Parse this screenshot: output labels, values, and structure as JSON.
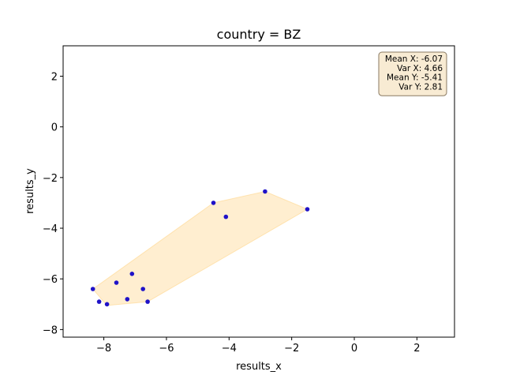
{
  "chart_data": {
    "type": "scatter",
    "title": "country = BZ",
    "xlabel": "results_x",
    "ylabel": "results_y",
    "xlim": [
      -9.3,
      3.2
    ],
    "ylim": [
      -8.3,
      3.2
    ],
    "xticks": [
      -8,
      -6,
      -4,
      -2,
      0,
      2
    ],
    "yticks": [
      -8,
      -6,
      -4,
      -2,
      0,
      2
    ],
    "grid": false,
    "point_color": "#1f12c8",
    "hull_fill": "#ffd58a",
    "series": [
      {
        "points": [
          {
            "x": -8.35,
            "y": -6.4
          },
          {
            "x": -8.15,
            "y": -6.9
          },
          {
            "x": -7.9,
            "y": -7.0
          },
          {
            "x": -7.6,
            "y": -6.15
          },
          {
            "x": -7.25,
            "y": -6.8
          },
          {
            "x": -7.1,
            "y": -5.8
          },
          {
            "x": -6.75,
            "y": -6.4
          },
          {
            "x": -6.6,
            "y": -6.9
          },
          {
            "x": -4.5,
            "y": -3.0
          },
          {
            "x": -4.1,
            "y": -3.55
          },
          {
            "x": -2.85,
            "y": -2.55
          },
          {
            "x": -1.5,
            "y": -3.25
          }
        ]
      }
    ],
    "hull": [
      {
        "x": -8.35,
        "y": -6.4
      },
      {
        "x": -7.9,
        "y": -7.05
      },
      {
        "x": -6.6,
        "y": -6.9
      },
      {
        "x": -1.5,
        "y": -3.25
      },
      {
        "x": -2.85,
        "y": -2.55
      },
      {
        "x": -4.5,
        "y": -3.0
      }
    ],
    "stats_box": {
      "position": "top-right",
      "lines": [
        "Mean X: -6.07",
        "Var X: 4.66",
        "Mean Y: -5.41",
        "Var Y: 2.81"
      ]
    }
  }
}
